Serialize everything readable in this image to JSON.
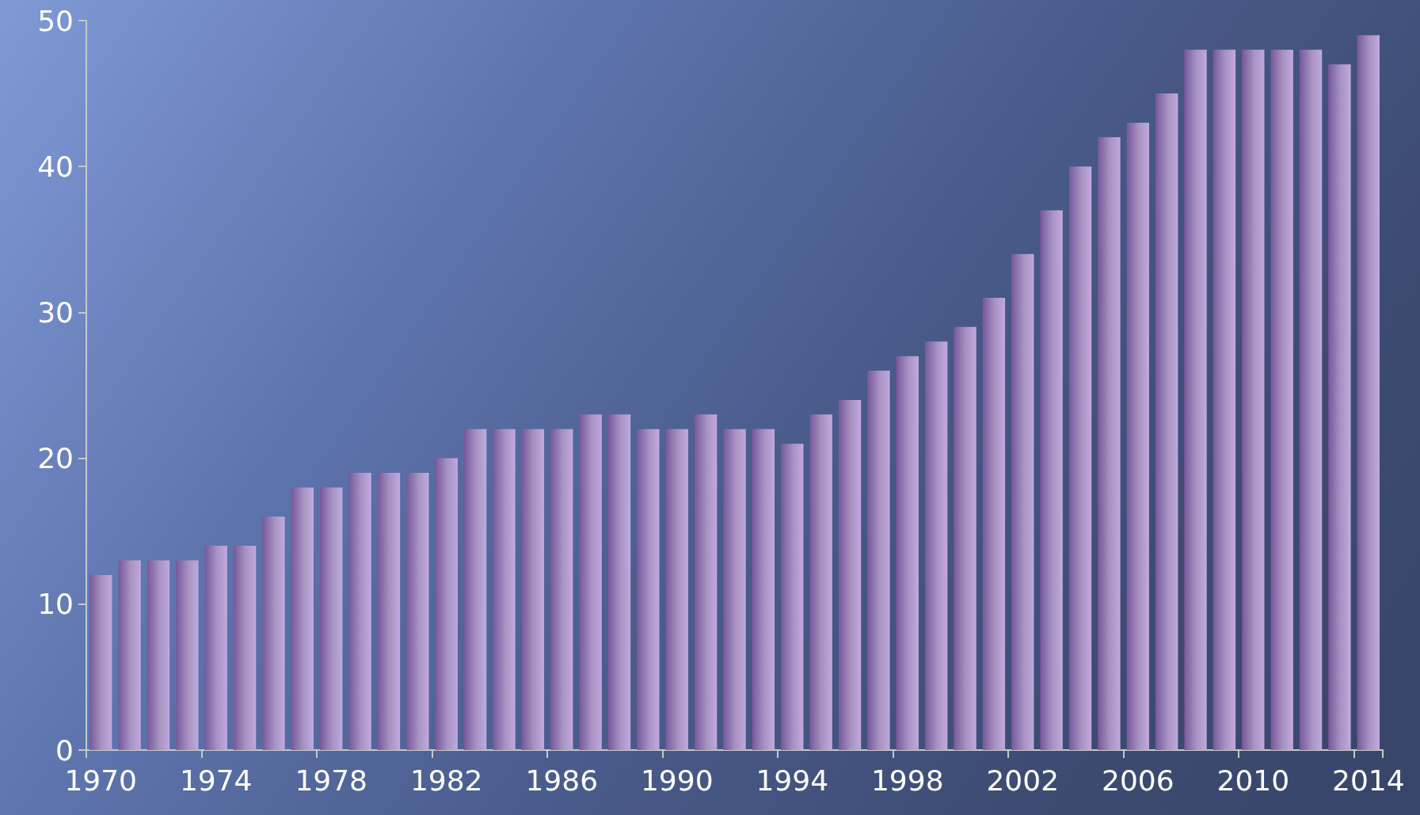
{
  "chart_data": {
    "type": "bar",
    "categories": [
      "1970",
      null,
      null,
      null,
      "1974",
      null,
      null,
      null,
      "1978",
      null,
      null,
      null,
      "1982",
      null,
      null,
      null,
      "1986",
      null,
      null,
      null,
      "1990",
      null,
      null,
      null,
      "1994",
      null,
      null,
      null,
      "1998",
      null,
      null,
      null,
      "2002",
      null,
      null,
      null,
      "2006",
      null,
      null,
      null,
      "2010",
      null,
      null,
      null,
      "2014"
    ],
    "values": [
      12,
      13,
      13,
      13,
      14,
      14,
      16,
      18,
      18,
      19,
      19,
      19,
      20,
      22,
      22,
      22,
      22,
      23,
      23,
      22,
      22,
      23,
      22,
      22,
      21,
      23,
      24,
      26,
      27,
      28,
      29,
      31,
      34,
      37,
      40,
      42,
      43,
      45,
      48,
      48,
      48,
      48,
      48,
      47,
      49
    ],
    "color": "#a893c2",
    "ylim": [
      0,
      50
    ],
    "yticks": [
      0,
      10,
      20,
      30,
      40,
      50
    ],
    "grid": false
  }
}
